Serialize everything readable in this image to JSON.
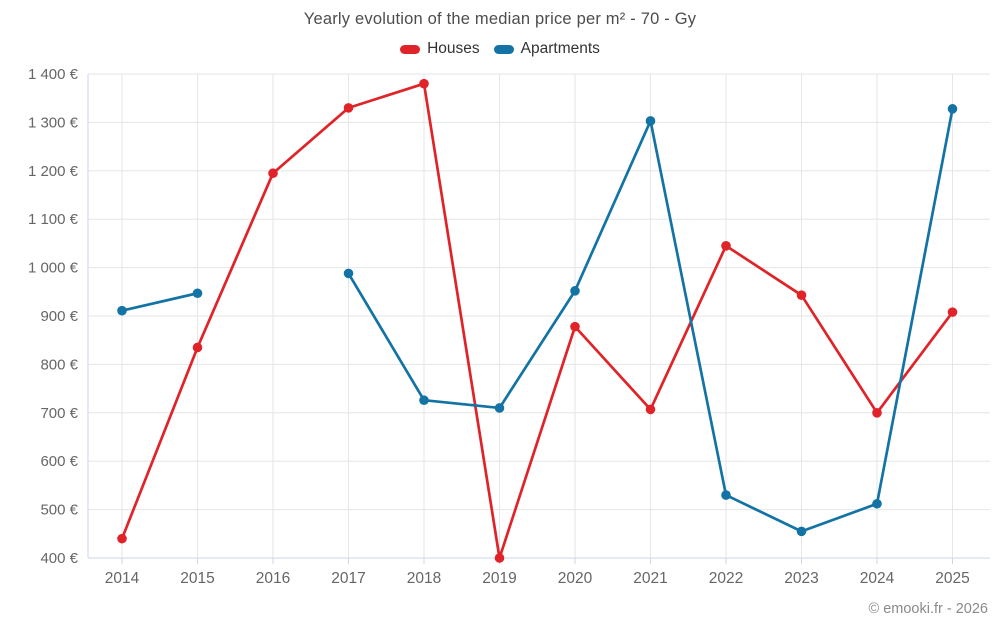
{
  "header": {
    "title": "Yearly evolution of the median price per m² - 70 - Gy"
  },
  "legend": {
    "items": [
      {
        "label": "Houses",
        "color": "#e02329"
      },
      {
        "label": "Apartments",
        "color": "#1373a5"
      }
    ]
  },
  "footer": {
    "credits": "© emooki.fr - 2026"
  },
  "colors": {
    "houses": "#e02329",
    "apartments": "#1373a5",
    "grid": "#e6e6e6",
    "axis": "#ccd6eb",
    "tick_label": "#666666",
    "title_text": "#4d4d4d"
  },
  "chart_data": {
    "type": "line",
    "title": "Yearly evolution of the median price per m² - 70 - Gy",
    "categories": [
      "2014",
      "2015",
      "2016",
      "2017",
      "2018",
      "2019",
      "2020",
      "2021",
      "2022",
      "2023",
      "2024",
      "2025"
    ],
    "series": [
      {
        "name": "Houses",
        "color": "#e02329",
        "values": [
          440,
          835,
          1195,
          1330,
          1380,
          400,
          878,
          707,
          1045,
          943,
          700,
          908
        ]
      },
      {
        "name": "Apartments",
        "color": "#1373a5",
        "values": [
          911,
          947,
          null,
          988,
          726,
          710,
          952,
          1303,
          530,
          455,
          512,
          1328
        ]
      }
    ],
    "xlabel": "",
    "ylabel": "",
    "ylim": [
      400,
      1400
    ],
    "ytick_step": 100,
    "ytick_labels": [
      "400 €",
      "500 €",
      "600 €",
      "700 €",
      "800 €",
      "900 €",
      "1 000 €",
      "1 100 €",
      "1 200 €",
      "1 300 €",
      "1 400 €"
    ],
    "grid": true,
    "legend_position": "top",
    "markers": true
  }
}
